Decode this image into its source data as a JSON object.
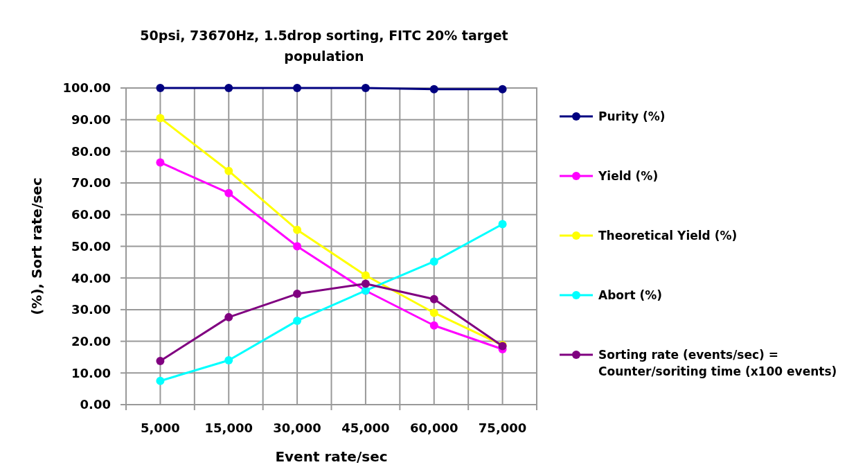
{
  "chart_data": {
    "type": "line",
    "title": "50psi, 73670Hz, 1.5drop sorting, FITC 20% target population",
    "xlabel": "Event rate/sec",
    "ylabel": "(%), Sort rate/sec",
    "categories": [
      "5,000",
      "15,000",
      "30,000",
      "45,000",
      "60,000",
      "75,000"
    ],
    "series": [
      {
        "name": "Purity (%)",
        "color": "#000080",
        "values": [
          100,
          100,
          100,
          100,
          99.6,
          99.6
        ]
      },
      {
        "name": "Yield (%)",
        "color": "#ff00ff",
        "values": [
          76.5,
          66.8,
          50,
          36,
          25,
          17.5
        ]
      },
      {
        "name": "Theoretical Yield (%)",
        "color": "#ffff00",
        "values": [
          90.5,
          73.8,
          55.2,
          40.8,
          29,
          18.8
        ]
      },
      {
        "name": "Abort (%)",
        "color": "#00ffff",
        "values": [
          7.5,
          14,
          26.5,
          36,
          45.2,
          57
        ]
      },
      {
        "name": "Sorting rate (events/sec) = Counter/soriting time (x100 events)",
        "color": "#800080",
        "values": [
          13.8,
          27.6,
          35,
          38.2,
          33.3,
          18.5
        ]
      }
    ],
    "ylim": [
      0,
      100
    ],
    "yticks": [
      {
        "value": 0,
        "label": "0.00"
      },
      {
        "value": 10,
        "label": "10.00"
      },
      {
        "value": 20,
        "label": "20.00"
      },
      {
        "value": 30,
        "label": "30.00"
      },
      {
        "value": 40,
        "label": "40.00"
      },
      {
        "value": 50,
        "label": "50.00"
      },
      {
        "value": 60,
        "label": "60.00"
      },
      {
        "value": 70,
        "label": "70.00"
      },
      {
        "value": 80,
        "label": "80.00"
      },
      {
        "value": 90,
        "label": "90.00"
      },
      {
        "value": 100,
        "label": "100.00"
      }
    ],
    "grid": true,
    "legend": "right",
    "marker": "circle",
    "line_style": "solid"
  }
}
